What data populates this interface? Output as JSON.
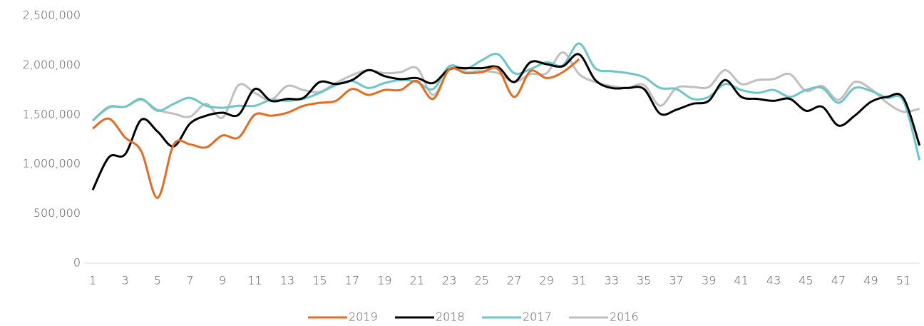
{
  "chart_data": {
    "type": "line",
    "categories": [
      1,
      null,
      3,
      null,
      5,
      null,
      7,
      null,
      9,
      null,
      11,
      null,
      13,
      null,
      15,
      null,
      17,
      null,
      19,
      null,
      21,
      null,
      23,
      null,
      25,
      null,
      27,
      null,
      29,
      null,
      31,
      null,
      33,
      null,
      35,
      null,
      37,
      null,
      39,
      null,
      41,
      null,
      43,
      null,
      45,
      null,
      47,
      null,
      49,
      null,
      51,
      null
    ],
    "ylim": [
      0,
      2500000
    ],
    "yticks": [
      0,
      {
        "value": 500000,
        "label": "500,000"
      },
      {
        "value": 1000000,
        "label": "1,000,000"
      },
      {
        "value": 1500000,
        "label": "1,500,000"
      },
      {
        "value": 2000000,
        "label": "2,000,000"
      },
      {
        "value": 2500000,
        "label": "2,500,000"
      }
    ],
    "grid": false,
    "legend": "bottom",
    "series": [
      {
        "name": "2019",
        "color": "#e46c22",
        "values": [
          1360000,
          1460000,
          1270000,
          1130000,
          660000,
          1200000,
          1200000,
          1170000,
          1290000,
          1270000,
          1500000,
          1490000,
          1520000,
          1590000,
          1620000,
          1640000,
          1760000,
          1700000,
          1750000,
          1750000,
          1840000,
          1660000,
          1960000,
          1920000,
          1930000,
          1960000,
          1680000,
          1940000,
          1870000,
          1930000,
          2060000,
          null,
          null,
          null,
          null,
          null,
          null,
          null,
          null,
          null,
          null,
          null,
          null,
          null,
          null,
          null,
          null,
          null,
          null,
          null,
          null,
          null
        ]
      },
      {
        "name": "2018",
        "color": "#000000",
        "values": [
          740000,
          1070000,
          1100000,
          1450000,
          1330000,
          1180000,
          1410000,
          1490000,
          1520000,
          1500000,
          1760000,
          1640000,
          1660000,
          1670000,
          1830000,
          1810000,
          1850000,
          1950000,
          1890000,
          1860000,
          1870000,
          1820000,
          1960000,
          1970000,
          1970000,
          1980000,
          1830000,
          2030000,
          2010000,
          1990000,
          2110000,
          1850000,
          1770000,
          1770000,
          1760000,
          1510000,
          1550000,
          1610000,
          1640000,
          1850000,
          1680000,
          1660000,
          1640000,
          1660000,
          1540000,
          1580000,
          1390000,
          1490000,
          1630000,
          1680000,
          1670000,
          1190000
        ]
      },
      {
        "name": "2017",
        "color": "#6cc5c8",
        "values": [
          1440000,
          1580000,
          1580000,
          1660000,
          1540000,
          1610000,
          1670000,
          1590000,
          1570000,
          1590000,
          1590000,
          1650000,
          1640000,
          1660000,
          1720000,
          1800000,
          1840000,
          1770000,
          1820000,
          1850000,
          1830000,
          1760000,
          1990000,
          1960000,
          2050000,
          2110000,
          1920000,
          1960000,
          2030000,
          2000000,
          2220000,
          1970000,
          1940000,
          1920000,
          1880000,
          1770000,
          1760000,
          1660000,
          1680000,
          1810000,
          1750000,
          1720000,
          1750000,
          1680000,
          1750000,
          1770000,
          1620000,
          1770000,
          1740000,
          1670000,
          1640000,
          1040000
        ]
      },
      {
        "name": "2016",
        "color": "#bfbfbf",
        "values": [
          1440000,
          1570000,
          1580000,
          1650000,
          1550000,
          1510000,
          1480000,
          1610000,
          1470000,
          1800000,
          1720000,
          1650000,
          1790000,
          1750000,
          1730000,
          1820000,
          1900000,
          1950000,
          1920000,
          1930000,
          1970000,
          1700000,
          1950000,
          1930000,
          1940000,
          1920000,
          1830000,
          1910000,
          1920000,
          2130000,
          1910000,
          1830000,
          1790000,
          1770000,
          1800000,
          1590000,
          1770000,
          1780000,
          1780000,
          1950000,
          1810000,
          1850000,
          1860000,
          1910000,
          1740000,
          1790000,
          1650000,
          1830000,
          1760000,
          1620000,
          1530000,
          1560000
        ]
      }
    ]
  }
}
